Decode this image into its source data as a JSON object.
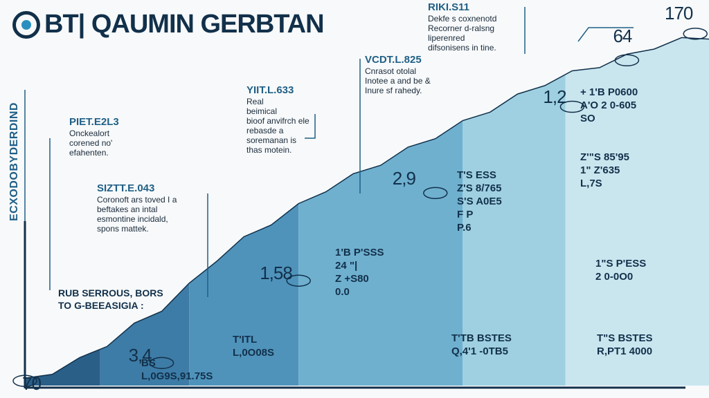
{
  "header": {
    "title": "BT| QAUMIN GERBTAN"
  },
  "ylabel": "ECXODOBYDERDIND",
  "xlabel": {
    "line1": "RUB SERROUS, BORS",
    "line2": "TO G-BEEASIGIA :"
  },
  "colors": {
    "navy": "#12304a",
    "blue_dark": "#2a5f88",
    "blue_mid": "#4f93bb",
    "blue_light": "#9fd0e2",
    "blue_pale": "#c9e6ef"
  },
  "chart_data": {
    "type": "area",
    "title": "BT| QAUMIN GERBTAN",
    "ylabel": "ECXODOBYDERDIND",
    "xlabel": "RUB SERROUS, BORS TO G-BEEASIGIA :",
    "milestones": [
      {
        "label": "70",
        "x": 0.0,
        "y": 70
      },
      {
        "label": "3,4",
        "x": 1.0,
        "y": 340
      },
      {
        "label": "1,58",
        "x": 2.0,
        "y": 1580
      },
      {
        "label": "2,9",
        "x": 3.0,
        "y": 2900
      },
      {
        "label": "1,2",
        "x": 4.0,
        "y": 4200
      },
      {
        "label": "64",
        "x": 4.4,
        "y": 4900
      },
      {
        "label": "170",
        "x": 4.9,
        "y": 5300
      }
    ],
    "curve": [
      [
        0.0,
        70
      ],
      [
        0.2,
        200
      ],
      [
        0.4,
        380
      ],
      [
        0.6,
        620
      ],
      [
        0.8,
        900
      ],
      [
        1.0,
        1150
      ],
      [
        1.2,
        1500
      ],
      [
        1.4,
        1900
      ],
      [
        1.6,
        2200
      ],
      [
        1.8,
        2450
      ],
      [
        2.0,
        2700
      ],
      [
        2.2,
        2950
      ],
      [
        2.4,
        3150
      ],
      [
        2.6,
        3350
      ],
      [
        2.8,
        3550
      ],
      [
        3.0,
        3750
      ],
      [
        3.2,
        3950
      ],
      [
        3.4,
        4150
      ],
      [
        3.6,
        4350
      ],
      [
        3.8,
        4550
      ],
      [
        4.0,
        4700
      ],
      [
        4.2,
        4820
      ],
      [
        4.4,
        4950
      ],
      [
        4.6,
        5100
      ],
      [
        4.8,
        5200
      ],
      [
        5.0,
        5250
      ]
    ],
    "xlim": [
      0,
      5
    ],
    "ylim": [
      0,
      5600
    ],
    "bands": [
      0,
      0.55,
      1.2,
      2.0,
      3.2,
      3.95,
      5.0
    ]
  },
  "notes": [
    {
      "h": "PIET.E2L3",
      "b": "Onckealort\ncorened no'\nefahenten."
    },
    {
      "h": "SIZTT.E.043",
      "b": "Coronoft ars toved I a\nbeftakes an intal\nesmontine incidald,\nspons mattek."
    },
    {
      "h": "YIIT.L.633",
      "b": "Real\nbeimical\nbioof anvifrch ele\nrebasde a\nsoremanan is\nthas motein."
    },
    {
      "h": "VCDT.L.825",
      "b": "Cnrasot otolal\nInotee a and be &\nInure sf rahedy."
    },
    {
      "h": "RIKI.S11",
      "b": "Dekfe s coxnenotd\nRecorner d-ralsng\nliperenred\ndifsonisens in tine."
    }
  ],
  "cells": [
    {
      "t": "T'ITL\nL,0O08S"
    },
    {
      "t": "1'B  P'SSS\n24  \"|\nZ  +S80\n0.0"
    },
    {
      "t": "T'TB  BSTES\nQ,4'1  -0TB5"
    },
    {
      "t": "T\"S  BSTES\nR,PT1  4000"
    },
    {
      "t": "1\"S  P'ESS\n2  0-0O0"
    },
    {
      "t": "Z'\"S  85'95\n1\"  Z'635\nL,7S"
    },
    {
      "t": "+  1'B  P0600\nA'O  2  0-605\nSO"
    },
    {
      "t": "T'S  ESS\nZ'S  8/765\nS'S  A0E5\nF  P\nP.6"
    },
    {
      "t": "BS\nL,0G9S,91.75S"
    }
  ]
}
